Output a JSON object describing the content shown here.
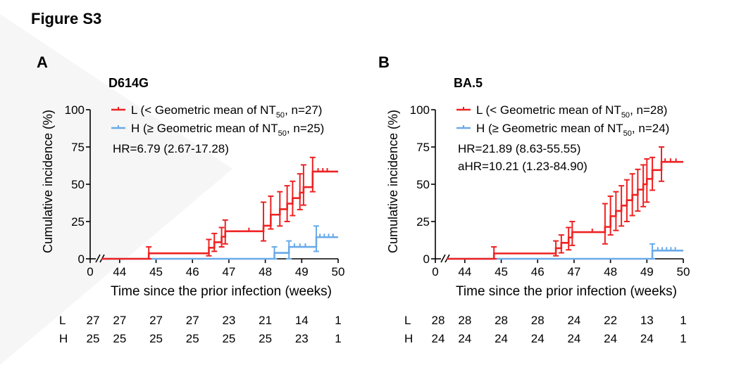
{
  "figure_title": "Figure S3",
  "chart_data": [
    {
      "type": "line",
      "panel_letter": "A",
      "title": "D614G",
      "xlabel": "Time since the prior infection (weeks)",
      "ylabel": "Cumulative incidence (%)",
      "xlim": [
        43.5,
        50
      ],
      "x_axis_break": true,
      "xticks": [
        0,
        44,
        45,
        46,
        47,
        48,
        49,
        50
      ],
      "ylim": [
        0,
        100
      ],
      "yticks": [
        0,
        25,
        50,
        75,
        100
      ],
      "legend_position": "top",
      "colors": {
        "L": "#ee2222",
        "H": "#6aaae8"
      },
      "annotations": [
        "HR=6.79 (2.67-17.28)"
      ],
      "series": [
        {
          "name": "L (< Geometric mean of NT50, n=27)",
          "legend_main": "L (< Geometric mean of NT",
          "legend_sub": "50",
          "legend_tail": ", n=27)",
          "x": [
            43.5,
            44.8,
            46.45,
            46.6,
            46.8,
            46.9,
            47.95,
            48.15,
            48.4,
            48.6,
            48.75,
            48.95,
            49.05,
            49.3,
            50
          ],
          "y": [
            0,
            3.7,
            7.4,
            11.1,
            14.8,
            18.5,
            22.2,
            29.6,
            33.3,
            37.0,
            40.7,
            44.4,
            48.1,
            58.5,
            58.5
          ],
          "ci_upper": [
            0,
            8,
            13,
            17,
            21,
            26,
            38,
            42,
            45,
            49,
            52,
            57,
            63,
            68,
            68
          ],
          "ci_lower": [
            0,
            0,
            2,
            5,
            8,
            10,
            12,
            20,
            22,
            25,
            29,
            33,
            36,
            45,
            45
          ],
          "censored_x": [
            47.55,
            49.45,
            49.58,
            49.7
          ]
        },
        {
          "name": "H (≥ Geometric mean of NT50, n=25)",
          "legend_main": "H (≥ Geometric mean of NT",
          "legend_sub": "50",
          "legend_tail": ", n=25)",
          "x": [
            43.5,
            48.25,
            48.65,
            49.4,
            50
          ],
          "y": [
            0,
            4,
            8,
            14.5,
            14.5
          ],
          "ci_upper": [
            0,
            8,
            12,
            22,
            22
          ],
          "ci_lower": [
            0,
            0,
            0,
            5,
            5
          ],
          "censored_x": [
            48.8,
            48.95,
            49.1,
            49.5,
            49.62,
            49.74,
            49.86
          ]
        }
      ],
      "risk_table": {
        "x": [
          "0",
          "44",
          "45",
          "46",
          "47",
          "48",
          "49",
          "50"
        ],
        "rows": [
          {
            "label": "L",
            "values": [
              "27",
              "27",
              "27",
              "27",
              "23",
              "21",
              "14",
              "1"
            ]
          },
          {
            "label": "H",
            "values": [
              "25",
              "25",
              "25",
              "25",
              "25",
              "25",
              "23",
              "1"
            ]
          }
        ]
      }
    },
    {
      "type": "line",
      "panel_letter": "B",
      "title": "BA.5",
      "xlabel": "Time since the prior infection (weeks)",
      "ylabel": "Cumulative incidence (%)",
      "xlim": [
        43.5,
        50
      ],
      "x_axis_break": true,
      "xticks": [
        0,
        44,
        45,
        46,
        47,
        48,
        49,
        50
      ],
      "ylim": [
        0,
        100
      ],
      "yticks": [
        0,
        25,
        50,
        75,
        100
      ],
      "legend_position": "top",
      "colors": {
        "L": "#ee2222",
        "H": "#6aaae8"
      },
      "annotations": [
        "HR=21.89 (8.63-55.55)",
        "aHR=10.21 (1.23-84.90)"
      ],
      "series": [
        {
          "name": "L (< Geometric mean of NT50, n=28)",
          "legend_main": "L (< Geometric mean of NT",
          "legend_sub": "50",
          "legend_tail": ", n=28)",
          "x": [
            43.5,
            44.8,
            46.5,
            46.65,
            46.85,
            46.95,
            47.85,
            48.0,
            48.15,
            48.3,
            48.45,
            48.6,
            48.75,
            48.9,
            49.0,
            49.15,
            49.4,
            50
          ],
          "y": [
            0,
            3.6,
            7.1,
            10.7,
            14.3,
            17.9,
            21.4,
            28.6,
            32.1,
            35.7,
            39.3,
            42.9,
            46.4,
            50.0,
            53.6,
            59.5,
            65.0,
            65.0
          ],
          "ci_upper": [
            0,
            8,
            12,
            16,
            21,
            25,
            37,
            42,
            45,
            49,
            53,
            57,
            60,
            63,
            67,
            68,
            75,
            75
          ],
          "ci_lower": [
            0,
            0,
            2,
            4,
            6,
            9,
            10,
            16,
            19,
            22,
            25,
            29,
            32,
            35,
            38,
            46,
            52,
            52
          ],
          "censored_x": [
            47.5,
            49.5,
            49.65,
            49.8
          ]
        },
        {
          "name": "H (≥ Geometric mean of NT50, n=24)",
          "legend_main": "H (≥ Geometric mean of NT",
          "legend_sub": "50",
          "legend_tail": ", n=24)",
          "x": [
            43.5,
            49.15,
            50
          ],
          "y": [
            0,
            5.5,
            5.5
          ],
          "ci_upper": [
            0,
            10,
            10
          ],
          "ci_lower": [
            0,
            0,
            0
          ],
          "censored_x": [
            49.3,
            49.42,
            49.54,
            49.66,
            49.78
          ]
        }
      ],
      "risk_table": {
        "x": [
          "0",
          "44",
          "45",
          "46",
          "47",
          "48",
          "49",
          "50"
        ],
        "rows": [
          {
            "label": "L",
            "values": [
              "28",
              "28",
              "28",
              "28",
              "24",
              "22",
              "13",
              "1"
            ]
          },
          {
            "label": "H",
            "values": [
              "24",
              "24",
              "24",
              "24",
              "24",
              "24",
              "24",
              "1"
            ]
          }
        ]
      }
    }
  ]
}
